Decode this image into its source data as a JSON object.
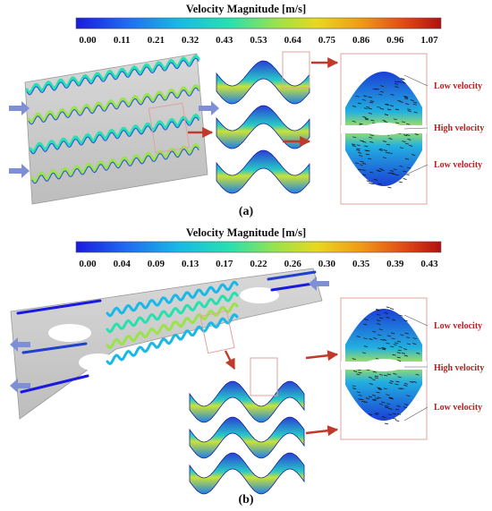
{
  "colorbar_a": {
    "title": "Velocity Magnitude [m/s]",
    "ticks": [
      "0.00",
      "0.11",
      "0.21",
      "0.32",
      "0.43",
      "0.53",
      "0.64",
      "0.75",
      "0.86",
      "0.96",
      "1.07"
    ],
    "range": [
      0.0,
      1.07
    ]
  },
  "colorbar_b": {
    "title": "Velocity Magnitude [m/s]",
    "ticks": [
      "0.00",
      "0.04",
      "0.09",
      "0.13",
      "0.17",
      "0.22",
      "0.26",
      "0.30",
      "0.35",
      "0.39",
      "0.43"
    ],
    "range": [
      0.0,
      0.43
    ]
  },
  "panel_a": {
    "label": "(a)",
    "annotations": [
      "Low velocity",
      "High velocity",
      "Low velocity"
    ]
  },
  "panel_b": {
    "label": "(b)",
    "annotations": [
      "Low velocity",
      "High velocity",
      "Low velocity"
    ]
  },
  "colors": {
    "colormap": [
      "#1a1adf",
      "#1f6cf0",
      "#19b8e6",
      "#27e0b0",
      "#9be34a",
      "#e8d820",
      "#f09a18",
      "#e04a14",
      "#b01010"
    ],
    "annotation": "#b22222",
    "frame": "#e3a1a1",
    "arrow": "#c0392b",
    "inlet_arrow": "#7f8fd6"
  }
}
